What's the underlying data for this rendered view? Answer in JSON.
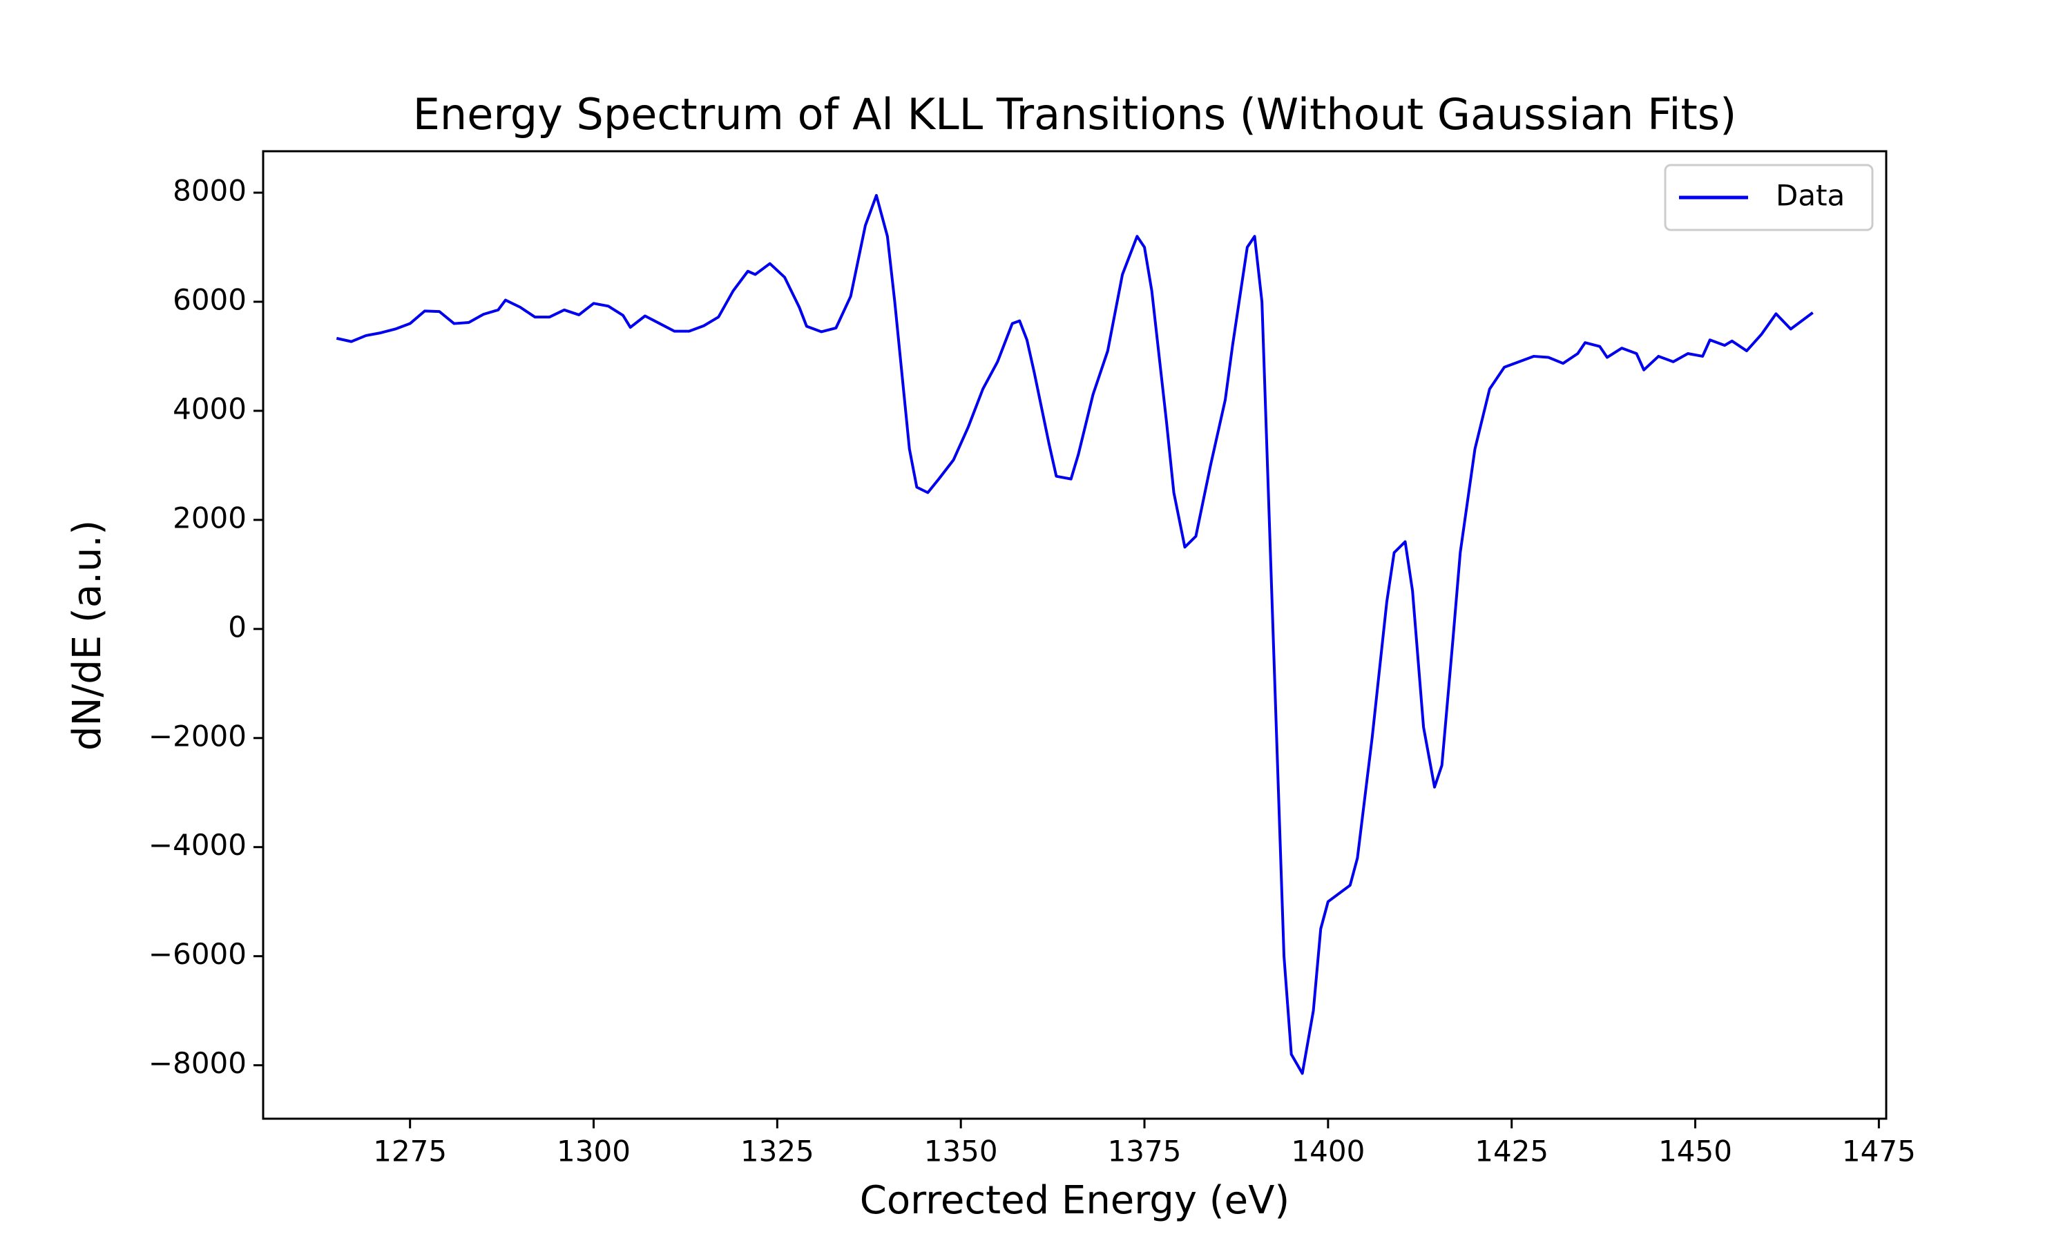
{
  "chart_data": {
    "type": "line",
    "title": "Energy Spectrum of Al KLL Transitions (Without Gaussian Fits)",
    "xlabel": "Corrected Energy (eV)",
    "ylabel": "dN/dE (a.u.)",
    "x": [
      1265,
      1267,
      1269,
      1271,
      1273,
      1275,
      1277,
      1279,
      1281,
      1283,
      1285,
      1287,
      1288,
      1290,
      1292,
      1294,
      1296,
      1298,
      1300,
      1302,
      1304,
      1305,
      1307,
      1309,
      1311,
      1313,
      1315,
      1317,
      1319,
      1321,
      1322,
      1324,
      1326,
      1328,
      1329,
      1331,
      1333,
      1335,
      1337,
      1338.5,
      1340,
      1341,
      1343,
      1344,
      1345.5,
      1347,
      1349,
      1351,
      1353,
      1355,
      1357,
      1358,
      1359,
      1360,
      1362,
      1363,
      1365,
      1366,
      1368,
      1370,
      1372,
      1374,
      1375,
      1376,
      1378,
      1379,
      1380.5,
      1382,
      1384,
      1386,
      1387,
      1389,
      1390,
      1391,
      1392,
      1393,
      1394,
      1395,
      1396.5,
      1398,
      1399,
      1400,
      1402,
      1403,
      1404,
      1406,
      1408,
      1409,
      1410.5,
      1411.5,
      1413,
      1414.5,
      1415.5,
      1417,
      1418,
      1420,
      1422,
      1424,
      1426,
      1428,
      1430,
      1432,
      1434,
      1435,
      1437,
      1438,
      1440,
      1442,
      1443,
      1445,
      1447,
      1449,
      1451,
      1452,
      1454,
      1455,
      1457,
      1459,
      1461,
      1463,
      1466
    ],
    "series": [
      {
        "name": "Data",
        "color": "#0000ee",
        "values": [
          5330,
          5270,
          5380,
          5430,
          5500,
          5600,
          5830,
          5820,
          5600,
          5620,
          5770,
          5850,
          6030,
          5900,
          5720,
          5720,
          5850,
          5760,
          5970,
          5920,
          5750,
          5530,
          5740,
          5600,
          5460,
          5460,
          5560,
          5720,
          6200,
          6560,
          6500,
          6700,
          6450,
          5900,
          5550,
          5450,
          5520,
          6100,
          7400,
          7950,
          7200,
          6000,
          3300,
          2600,
          2500,
          2750,
          3100,
          3700,
          4400,
          4900,
          5600,
          5650,
          5300,
          4700,
          3400,
          2800,
          2750,
          3200,
          4300,
          5100,
          6500,
          7200,
          7000,
          6200,
          3800,
          2500,
          1500,
          1700,
          3000,
          4200,
          5200,
          7000,
          7200,
          6000,
          2000,
          -2000,
          -6000,
          -7800,
          -8150,
          -7000,
          -5500,
          -5000,
          -4800,
          -4700,
          -4200,
          -2000,
          500,
          1400,
          1600,
          700,
          -1800,
          -2900,
          -2500,
          -200,
          1400,
          3300,
          4400,
          4800,
          4900,
          5000,
          4980,
          4870,
          5050,
          5250,
          5180,
          4980,
          5150,
          5050,
          4750,
          5000,
          4900,
          5050,
          5000,
          5300,
          5200,
          5280,
          5100,
          5400,
          5780,
          5500,
          5800
        ]
      }
    ],
    "xlim": [
      1255,
      1476
    ],
    "xticks": [
      1275,
      1300,
      1325,
      1350,
      1375,
      1400,
      1425,
      1450,
      1475
    ],
    "ylim": [
      -8980,
      8760
    ],
    "yticks": [
      8000,
      6000,
      4000,
      2000,
      0,
      {
        "value": -2000,
        "label": "−2000"
      },
      {
        "value": -4000,
        "label": "−4000"
      },
      {
        "value": -6000,
        "label": "−6000"
      },
      {
        "value": -8000,
        "label": "−8000"
      }
    ],
    "legend": "upper right"
  }
}
